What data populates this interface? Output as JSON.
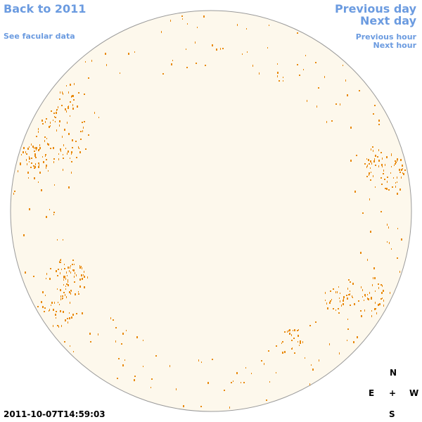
{
  "nav": {
    "back": "Back to 2011",
    "facular": "See facular data",
    "previous_day": "Previous day",
    "next_day": "Next day",
    "previous_hour": "Previous hour",
    "next_hour": "Next hour"
  },
  "timestamp": "2011-10-07T14:59:03",
  "compass": {
    "north": "N",
    "east": "E",
    "center": "+",
    "west": "W",
    "south": "S"
  }
}
